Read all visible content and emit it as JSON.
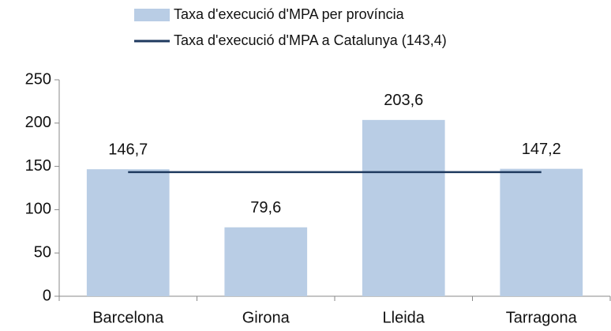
{
  "chart_data": {
    "type": "bar",
    "categories": [
      "Barcelona",
      "Girona",
      "Lleida",
      "Tarragona"
    ],
    "series": [
      {
        "name": "Taxa d'execució d'MPA per província",
        "type": "bar",
        "color": "#b9cde5",
        "values": [
          146.7,
          79.6,
          203.6,
          147.2
        ],
        "value_labels": [
          "146,7",
          "79,6",
          "203,6",
          "147,2"
        ]
      },
      {
        "name": "Taxa d'execució d'MPA a Catalunya (143,4)",
        "type": "line",
        "color": "#1f3a5f",
        "values": [
          143.4,
          143.4,
          143.4,
          143.4
        ]
      }
    ],
    "ylim": [
      0,
      250
    ],
    "yticks": [
      0,
      50,
      100,
      150,
      200,
      250
    ],
    "grid": false,
    "legend": "top"
  }
}
